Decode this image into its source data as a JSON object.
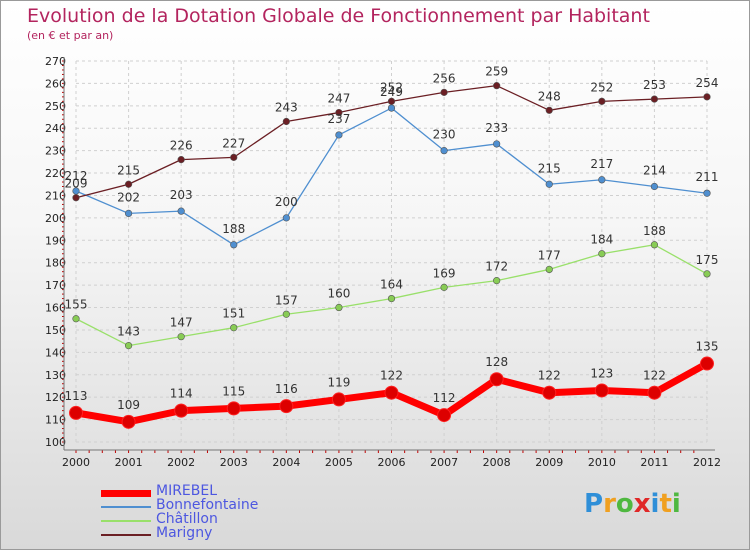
{
  "chart_data": {
    "type": "line",
    "title": "Evolution de la Dotation Globale de Fonctionnement par Habitant",
    "subtitle": "(en € et par an)",
    "x": [
      "2000",
      "2001",
      "2002",
      "2003",
      "2004",
      "2005",
      "2006",
      "2007",
      "2008",
      "2009",
      "2010",
      "2011",
      "2012"
    ],
    "ylim": [
      100,
      270
    ],
    "yticks": [
      100,
      110,
      120,
      130,
      140,
      150,
      160,
      170,
      180,
      190,
      200,
      210,
      220,
      230,
      240,
      250,
      260,
      270
    ],
    "grid": true,
    "legend_position": "bottom-left",
    "series": [
      {
        "name": "MIREBEL",
        "color": "#ff0000",
        "values": [
          113,
          109,
          114,
          115,
          116,
          119,
          122,
          112,
          128,
          122,
          123,
          122,
          135
        ]
      },
      {
        "name": "Bonnefontaine",
        "color": "#4f8fd0",
        "values": [
          212,
          202,
          203,
          188,
          200,
          237,
          249,
          230,
          233,
          215,
          217,
          214,
          211
        ]
      },
      {
        "name": "Châtillon",
        "color": "#99e06a",
        "values": [
          155,
          143,
          147,
          151,
          157,
          160,
          164,
          169,
          172,
          177,
          184,
          188,
          175
        ]
      },
      {
        "name": "Marigny",
        "color": "#6b1f24",
        "values": [
          209,
          215,
          226,
          227,
          243,
          247,
          252,
          256,
          259,
          248,
          252,
          253,
          254
        ]
      }
    ]
  },
  "logo": {
    "letters": [
      {
        "char": "P",
        "color": "#2f8fd8"
      },
      {
        "char": "r",
        "color": "#f0a020"
      },
      {
        "char": "o",
        "color": "#4fb840"
      },
      {
        "char": "x",
        "color": "#e02828"
      },
      {
        "char": "i",
        "color": "#2f8fd8"
      },
      {
        "char": "t",
        "color": "#f0a020"
      },
      {
        "char": "i",
        "color": "#4fb840"
      }
    ]
  }
}
